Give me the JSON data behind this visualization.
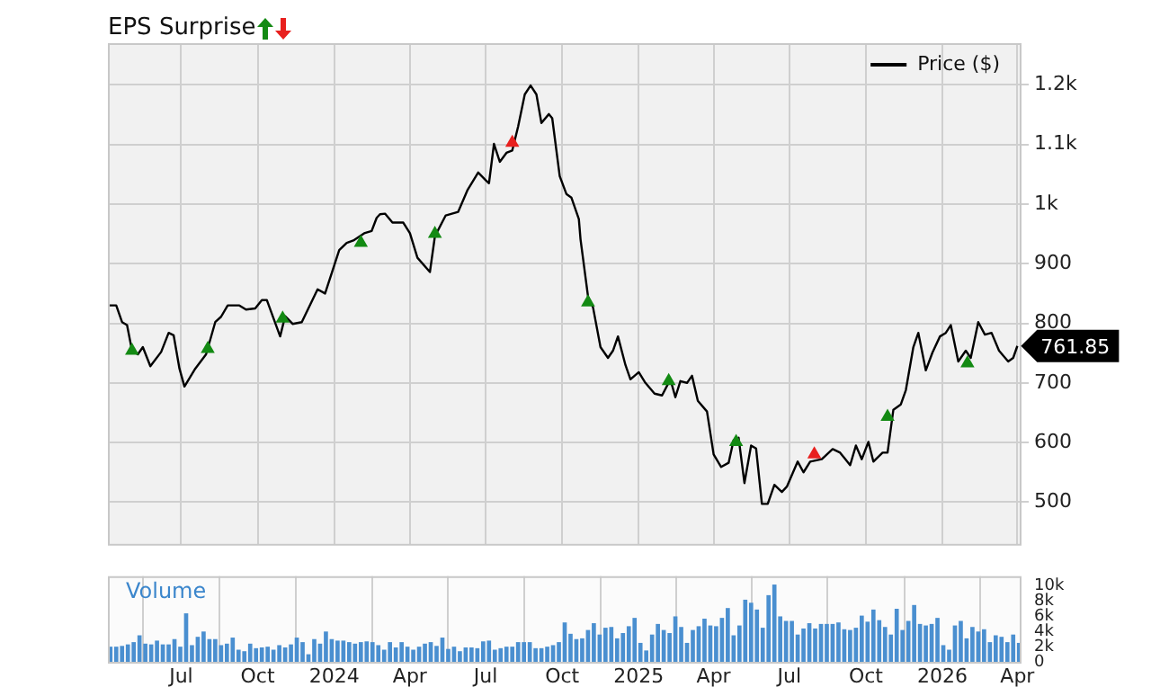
{
  "chart_data": [
    {
      "type": "line",
      "title": "EPS Surprise",
      "xlim": [
        "2023-04-04",
        "2026-04-06"
      ],
      "xticks": [
        {
          "value": "2023-07-01",
          "label": null
        },
        {
          "value": "2023-10-01",
          "label": null
        },
        {
          "value": "2024-01-01",
          "label": null
        },
        {
          "value": "2024-04-01",
          "label": null
        },
        {
          "value": "2024-07-01",
          "label": null
        },
        {
          "value": "2024-10-01",
          "label": null
        },
        {
          "value": "2025-01-01",
          "label": null
        },
        {
          "value": "2025-04-01",
          "label": null
        },
        {
          "value": "2025-07-01",
          "label": null
        },
        {
          "value": "2025-10-01",
          "label": null
        },
        {
          "value": "2026-01-01",
          "label": null
        },
        {
          "value": "2026-04-01",
          "label": null
        }
      ],
      "ylim": [
        430,
        1270
      ],
      "yticks": [
        500,
        600,
        700,
        800,
        900,
        {
          "value": 1000,
          "label": "1k"
        },
        {
          "value": 1100,
          "label": "1.1k"
        },
        {
          "value": 1200,
          "label": "1.2k"
        }
      ],
      "grid": true,
      "legend": "top right",
      "tick_labels": "y",
      "annotations": [
        {
          "text": "761.85",
          "x": "2026-04-01",
          "y": 761.85
        }
      ],
      "series": [
        {
          "name": "Price ($)",
          "type": "line",
          "color": "#000000",
          "x": [
            "2023-04-06",
            "2023-04-14",
            "2023-04-21",
            "2023-04-27",
            "2023-05-03",
            "2023-05-10",
            "2023-05-16",
            "2023-05-25",
            "2023-06-07",
            "2023-06-16",
            "2023-06-22",
            "2023-06-29",
            "2023-07-05",
            "2023-07-18",
            "2023-07-31",
            "2023-08-11",
            "2023-08-18",
            "2023-08-26",
            "2023-09-09",
            "2023-09-17",
            "2023-09-28",
            "2023-10-06",
            "2023-10-12",
            "2023-10-28",
            "2023-11-03",
            "2023-11-12",
            "2023-11-23",
            "2023-12-12",
            "2023-12-21",
            "2024-01-07",
            "2024-01-16",
            "2024-01-24",
            "2024-02-06",
            "2024-02-15",
            "2024-02-21",
            "2024-02-25",
            "2024-03-02",
            "2024-03-11",
            "2024-03-24",
            "2024-04-01",
            "2024-04-10",
            "2024-04-25",
            "2024-05-01",
            "2024-05-14",
            "2024-05-29",
            "2024-06-09",
            "2024-06-22",
            "2024-07-01",
            "2024-07-05",
            "2024-07-11",
            "2024-07-18",
            "2024-07-26",
            "2024-08-02",
            "2024-08-09",
            "2024-08-17",
            "2024-08-24",
            "2024-08-31",
            "2024-09-06",
            "2024-09-15",
            "2024-09-19",
            "2024-09-28",
            "2024-10-06",
            "2024-10-12",
            "2024-10-21",
            "2024-10-23",
            "2024-11-01",
            "2024-11-07",
            "2024-11-16",
            "2024-11-25",
            "2024-12-01",
            "2024-12-07",
            "2024-12-16",
            "2024-12-22",
            "2025-01-01",
            "2025-01-09",
            "2025-01-20",
            "2025-01-29",
            "2025-02-08",
            "2025-02-14",
            "2025-02-20",
            "2025-02-28",
            "2025-03-06",
            "2025-03-13",
            "2025-03-24",
            "2025-04-01",
            "2025-04-10",
            "2025-04-19",
            "2025-04-25",
            "2025-05-01",
            "2025-05-08",
            "2025-05-16",
            "2025-05-22",
            "2025-05-29",
            "2025-06-05",
            "2025-06-13",
            "2025-06-22",
            "2025-06-28",
            "2025-07-11",
            "2025-07-18",
            "2025-07-26",
            "2025-08-09",
            "2025-08-22",
            "2025-08-31",
            "2025-09-12",
            "2025-09-19",
            "2025-09-26",
            "2025-10-04",
            "2025-10-10",
            "2025-10-21",
            "2025-10-27",
            "2025-11-03",
            "2025-11-12",
            "2025-11-18",
            "2025-11-27",
            "2025-12-03",
            "2025-12-12",
            "2025-12-20",
            "2025-12-29",
            "2026-01-05",
            "2026-01-11",
            "2026-01-20",
            "2026-01-29",
            "2026-02-04",
            "2026-02-13",
            "2026-02-21",
            "2026-03-01",
            "2026-03-10",
            "2026-03-21",
            "2026-03-27",
            "2026-04-01"
          ],
          "values": [
            830,
            830,
            802,
            797,
            754,
            748,
            760,
            728,
            752,
            784,
            780,
            724,
            694,
            724,
            748,
            802,
            811,
            830,
            830,
            823,
            825,
            839,
            839,
            778,
            812,
            799,
            802,
            857,
            850,
            923,
            935,
            939,
            951,
            955,
            977,
            983,
            984,
            969,
            969,
            951,
            910,
            886,
            946,
            981,
            987,
            1023,
            1053,
            1040,
            1035,
            1101,
            1071,
            1086,
            1090,
            1130,
            1184,
            1199,
            1184,
            1136,
            1151,
            1144,
            1047,
            1017,
            1011,
            975,
            941,
            845,
            827,
            760,
            742,
            754,
            778,
            730,
            706,
            718,
            700,
            682,
            679,
            706,
            676,
            703,
            700,
            712,
            670,
            652,
            580,
            559,
            566,
            604,
            608,
            532,
            595,
            590,
            497,
            497,
            529,
            517,
            526,
            568,
            550,
            568,
            572,
            589,
            583,
            562,
            595,
            572,
            601,
            568,
            583,
            583,
            655,
            664,
            688,
            760,
            784,
            721,
            751,
            778,
            784,
            797,
            736,
            754,
            742,
            802,
            781,
            784,
            754,
            736,
            742,
            762
          ]
        },
        {
          "type": "scatter",
          "marker": "triangle",
          "color": "#138a13",
          "x": [
            "2023-05-03",
            "2023-08-02",
            "2023-10-31",
            "2024-02-02",
            "2024-05-01",
            "2024-11-01",
            "2025-02-06",
            "2025-04-28",
            "2025-10-27",
            "2026-01-31"
          ],
          "values": [
            754,
            757,
            808,
            935,
            950,
            835,
            703,
            601,
            643,
            733
          ]
        },
        {
          "type": "scatter",
          "marker": "triangle",
          "color": "#e8201e",
          "x": [
            "2024-08-02",
            "2025-07-31"
          ],
          "values": [
            1103,
            580
          ]
        }
      ]
    },
    {
      "type": "bar",
      "title": "Volume",
      "xlim": [
        "2023-04-04",
        "2026-04-06"
      ],
      "xticks": [
        {
          "value": "2023-07-01",
          "label": "Jul"
        },
        {
          "value": "2023-10-01",
          "label": "Oct"
        },
        {
          "value": "2024-01-01",
          "label": "2024"
        },
        {
          "value": "2024-04-01",
          "label": "Apr"
        },
        {
          "value": "2024-07-01",
          "label": "Jul"
        },
        {
          "value": "2024-10-01",
          "label": "Oct"
        },
        {
          "value": "2025-01-01",
          "label": "2025"
        },
        {
          "value": "2025-04-01",
          "label": "Apr"
        },
        {
          "value": "2025-07-01",
          "label": "Jul"
        },
        {
          "value": "2025-10-01",
          "label": "Oct"
        },
        {
          "value": "2026-01-01",
          "label": "2026"
        },
        {
          "value": "2026-04-01",
          "label": "Apr"
        }
      ],
      "ylim": [
        0,
        11300
      ],
      "yticks": [
        0,
        {
          "value": 2000,
          "label": "2k"
        },
        {
          "value": 4000,
          "label": "4k"
        },
        {
          "value": 6000,
          "label": "6k"
        },
        {
          "value": 8000,
          "label": "8k"
        },
        {
          "value": 10000,
          "label": "10k"
        }
      ],
      "grid": "x",
      "color": "#4a8fd0",
      "x": [
        "2023-04-07",
        "2023-04-14",
        "2023-04-21",
        "2023-04-28",
        "2023-05-05",
        "2023-05-12",
        "2023-05-19",
        "2023-05-26",
        "2023-06-02",
        "2023-06-09",
        "2023-06-16",
        "2023-06-23",
        "2023-06-30",
        "2023-07-07",
        "2023-07-14",
        "2023-07-21",
        "2023-07-28",
        "2023-08-04",
        "2023-08-11",
        "2023-08-18",
        "2023-08-25",
        "2023-09-01",
        "2023-09-08",
        "2023-09-15",
        "2023-09-22",
        "2023-09-29",
        "2023-10-06",
        "2023-10-13",
        "2023-10-20",
        "2023-10-27",
        "2023-11-03",
        "2023-11-10",
        "2023-11-17",
        "2023-11-24",
        "2023-12-01",
        "2023-12-08",
        "2023-12-15",
        "2023-12-22",
        "2023-12-29",
        "2024-01-05",
        "2024-01-12",
        "2024-01-19",
        "2024-01-26",
        "2024-02-02",
        "2024-02-09",
        "2024-02-16",
        "2024-02-23",
        "2024-03-01",
        "2024-03-08",
        "2024-03-15",
        "2024-03-22",
        "2024-03-29",
        "2024-04-05",
        "2024-04-12",
        "2024-04-19",
        "2024-04-26",
        "2024-05-03",
        "2024-05-10",
        "2024-05-17",
        "2024-05-24",
        "2024-05-31",
        "2024-06-07",
        "2024-06-14",
        "2024-06-21",
        "2024-06-28",
        "2024-07-05",
        "2024-07-12",
        "2024-07-19",
        "2024-07-26",
        "2024-08-02",
        "2024-08-09",
        "2024-08-16",
        "2024-08-23",
        "2024-08-30",
        "2024-09-06",
        "2024-09-13",
        "2024-09-20",
        "2024-09-27",
        "2024-10-04",
        "2024-10-11",
        "2024-10-18",
        "2024-10-25",
        "2024-11-01",
        "2024-11-08",
        "2024-11-15",
        "2024-11-22",
        "2024-11-29",
        "2024-12-06",
        "2024-12-13",
        "2024-12-20",
        "2024-12-27",
        "2025-01-03",
        "2025-01-10",
        "2025-01-17",
        "2025-01-24",
        "2025-01-31",
        "2025-02-07",
        "2025-02-14",
        "2025-02-21",
        "2025-02-28",
        "2025-03-07",
        "2025-03-14",
        "2025-03-21",
        "2025-03-28",
        "2025-04-04",
        "2025-04-11",
        "2025-04-18",
        "2025-04-25",
        "2025-05-02",
        "2025-05-09",
        "2025-05-16",
        "2025-05-23",
        "2025-05-30",
        "2025-06-06",
        "2025-06-13",
        "2025-06-20",
        "2025-06-27",
        "2025-07-04",
        "2025-07-11",
        "2025-07-18",
        "2025-07-25",
        "2025-08-01",
        "2025-08-08",
        "2025-08-15",
        "2025-08-22",
        "2025-08-29",
        "2025-09-05",
        "2025-09-12",
        "2025-09-19",
        "2025-09-26",
        "2025-10-03",
        "2025-10-10",
        "2025-10-17",
        "2025-10-24",
        "2025-10-31",
        "2025-11-07",
        "2025-11-14",
        "2025-11-21",
        "2025-11-28",
        "2025-12-05",
        "2025-12-12",
        "2025-12-19",
        "2025-12-26",
        "2026-01-02",
        "2026-01-09",
        "2026-01-16",
        "2026-01-23",
        "2026-01-30",
        "2026-02-06",
        "2026-02-13",
        "2026-02-20",
        "2026-02-27",
        "2026-03-06",
        "2026-03-13",
        "2026-03-20",
        "2026-03-27",
        "2026-04-03"
      ],
      "values": [
        2000,
        2000,
        2100,
        2300,
        2600,
        3500,
        2400,
        2300,
        2800,
        2300,
        2300,
        3000,
        2000,
        6400,
        2200,
        3300,
        4000,
        3000,
        3000,
        2200,
        2400,
        3200,
        1600,
        1400,
        2400,
        1800,
        1900,
        2000,
        1600,
        2200,
        1900,
        2300,
        3200,
        2600,
        1000,
        3000,
        2400,
        4000,
        3000,
        2800,
        2800,
        2600,
        2400,
        2600,
        2700,
        2600,
        2200,
        1600,
        2600,
        1900,
        2600,
        2000,
        1600,
        2000,
        2400,
        2600,
        2100,
        3200,
        1700,
        2000,
        1400,
        1900,
        1900,
        1800,
        2700,
        2800,
        1600,
        1800,
        2000,
        2000,
        2600,
        2600,
        2600,
        1800,
        1800,
        2000,
        2200,
        2600,
        5200,
        3700,
        3000,
        3100,
        4200,
        5100,
        3600,
        4500,
        4600,
        3100,
        3800,
        4700,
        5800,
        2500,
        1500,
        3600,
        5000,
        4200,
        3800,
        6000,
        4600,
        2500,
        4200,
        4700,
        5700,
        4800,
        4700,
        5800,
        7100,
        3500,
        4800,
        8200,
        7800,
        6900,
        4500,
        8800,
        10200,
        6000,
        5400,
        5400,
        3600,
        4400,
        5100,
        4400,
        5000,
        5000,
        5000,
        5200,
        4300,
        4200,
        4500,
        6100,
        5300,
        6900,
        5500,
        4600,
        3600,
        7000,
        4200,
        5400,
        7500,
        5000,
        4800,
        5000,
        5800,
        2200,
        1600,
        4800,
        5400,
        3100,
        4600,
        4000,
        4300,
        2600,
        3500,
        3300,
        2600,
        3600,
        2500
      ]
    }
  ]
}
